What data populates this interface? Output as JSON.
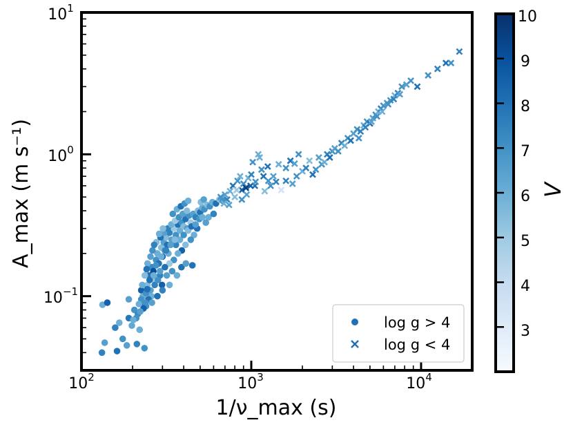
{
  "chart_data": {
    "type": "scatter",
    "title": "",
    "xscale": "log",
    "yscale": "log",
    "xlabel": "1/ν_max (s)",
    "ylabel": "A_max (m s⁻¹)",
    "xlim": [
      100,
      20000
    ],
    "ylim": [
      0.03,
      10
    ],
    "x_ticks": [
      {
        "base": "10",
        "exp": "2",
        "value": 100
      },
      {
        "base": "10",
        "exp": "3",
        "value": 1000
      },
      {
        "base": "10",
        "exp": "4",
        "value": 10000
      }
    ],
    "y_ticks": [
      {
        "base": "10",
        "exp": "−1",
        "value": 0.1
      },
      {
        "base": "10",
        "exp": "0",
        "value": 1
      },
      {
        "base": "10",
        "exp": "1",
        "value": 10
      }
    ],
    "colorbar": {
      "label": "V",
      "range": [
        2,
        10
      ],
      "ticks": [
        "3",
        "4",
        "5",
        "6",
        "7",
        "8",
        "9",
        "10"
      ],
      "colormap": [
        "#f7fbff",
        "#deebf7",
        "#c6dbef",
        "#9ecae1",
        "#6baed6",
        "#4292c6",
        "#2171b5",
        "#08519c",
        "#08306b"
      ]
    },
    "legend": {
      "position": "lower-right",
      "entries": [
        {
          "marker": "circle",
          "label": "log g > 4",
          "color": "#2171b5"
        },
        {
          "marker": "x",
          "label": "log g < 4",
          "color": "#2171b5"
        }
      ]
    },
    "series": [
      {
        "name": "log g > 4",
        "marker": "circle",
        "points": [
          [
            132,
            0.04,
            7.5
          ],
          [
            137,
            0.047,
            6.5
          ],
          [
            133,
            0.087,
            6.0
          ],
          [
            142,
            0.09,
            8.5
          ],
          [
            162,
            0.041,
            8.0
          ],
          [
            158,
            0.06,
            7.5
          ],
          [
            167,
            0.065,
            6.0
          ],
          [
            175,
            0.05,
            7.0
          ],
          [
            185,
            0.045,
            6.5
          ],
          [
            190,
            0.07,
            7.8
          ],
          [
            198,
            0.062,
            6.2
          ],
          [
            205,
            0.08,
            7.0
          ],
          [
            212,
            0.046,
            7.5
          ],
          [
            220,
            0.058,
            6.0
          ],
          [
            228,
            0.09,
            8.0
          ],
          [
            235,
            0.043,
            7.0
          ],
          [
            190,
            0.095,
            6.5
          ],
          [
            215,
            0.075,
            7.2
          ],
          [
            225,
            0.11,
            8.5
          ],
          [
            230,
            0.1,
            6.0
          ],
          [
            240,
            0.085,
            7.0
          ],
          [
            245,
            0.12,
            5.5
          ],
          [
            250,
            0.14,
            8.0
          ],
          [
            255,
            0.11,
            6.5
          ],
          [
            260,
            0.16,
            7.2
          ],
          [
            265,
            0.15,
            9.0
          ],
          [
            270,
            0.13,
            5.0
          ],
          [
            275,
            0.18,
            7.0
          ],
          [
            280,
            0.2,
            6.0
          ],
          [
            285,
            0.17,
            8.0
          ],
          [
            290,
            0.14,
            7.5
          ],
          [
            295,
            0.22,
            5.5
          ],
          [
            300,
            0.19,
            8.5
          ],
          [
            305,
            0.24,
            6.5
          ],
          [
            310,
            0.21,
            7.0
          ],
          [
            315,
            0.26,
            5.5
          ],
          [
            320,
            0.23,
            8.0
          ],
          [
            325,
            0.2,
            6.0
          ],
          [
            330,
            0.28,
            7.5
          ],
          [
            340,
            0.25,
            6.5
          ],
          [
            350,
            0.3,
            5.0
          ],
          [
            360,
            0.27,
            7.0
          ],
          [
            370,
            0.32,
            8.0
          ],
          [
            380,
            0.29,
            6.0
          ],
          [
            390,
            0.33,
            7.0
          ],
          [
            400,
            0.31,
            5.5
          ],
          [
            410,
            0.35,
            8.0
          ],
          [
            420,
            0.3,
            6.5
          ],
          [
            430,
            0.37,
            7.0
          ],
          [
            440,
            0.33,
            5.0
          ],
          [
            455,
            0.38,
            6.5
          ],
          [
            470,
            0.36,
            7.5
          ],
          [
            485,
            0.4,
            5.5
          ],
          [
            500,
            0.39,
            8.0
          ],
          [
            515,
            0.42,
            6.0
          ],
          [
            530,
            0.41,
            7.0
          ],
          [
            550,
            0.44,
            5.5
          ],
          [
            570,
            0.43,
            7.0
          ],
          [
            590,
            0.46,
            6.0
          ],
          [
            620,
            0.45,
            8.0
          ],
          [
            650,
            0.48,
            5.5
          ],
          [
            680,
            0.47,
            7.0
          ],
          [
            560,
            0.36,
            6.0
          ],
          [
            600,
            0.38,
            7.5
          ],
          [
            540,
            0.33,
            6.5
          ],
          [
            480,
            0.3,
            8.0
          ],
          [
            460,
            0.27,
            6.0
          ],
          [
            440,
            0.25,
            7.0
          ],
          [
            410,
            0.23,
            5.5
          ],
          [
            390,
            0.21,
            8.5
          ],
          [
            370,
            0.2,
            6.0
          ],
          [
            350,
            0.18,
            7.0
          ],
          [
            330,
            0.17,
            5.0
          ],
          [
            310,
            0.16,
            8.0
          ],
          [
            290,
            0.15,
            6.5
          ],
          [
            270,
            0.12,
            7.5
          ],
          [
            258,
            0.1,
            6.0
          ],
          [
            248,
            0.095,
            8.0
          ],
          [
            238,
            0.09,
            7.0
          ],
          [
            232,
            0.082,
            8.5
          ],
          [
            222,
            0.078,
            6.5
          ],
          [
            210,
            0.07,
            7.0
          ],
          [
            202,
            0.068,
            6.0
          ],
          [
            245,
            0.17,
            6.0
          ],
          [
            262,
            0.21,
            7.0
          ],
          [
            276,
            0.24,
            5.5
          ],
          [
            292,
            0.26,
            8.0
          ],
          [
            306,
            0.28,
            6.5
          ],
          [
            322,
            0.3,
            7.5
          ],
          [
            338,
            0.32,
            6.0
          ],
          [
            356,
            0.34,
            5.0
          ],
          [
            375,
            0.36,
            7.0
          ],
          [
            395,
            0.38,
            6.5
          ],
          [
            418,
            0.4,
            5.5
          ],
          [
            252,
            0.13,
            8.0
          ],
          [
            266,
            0.14,
            6.0
          ],
          [
            282,
            0.13,
            7.0
          ],
          [
            298,
            0.12,
            8.5
          ],
          [
            318,
            0.14,
            6.5
          ],
          [
            342,
            0.15,
            7.0
          ],
          [
            365,
            0.14,
            6.0
          ],
          [
            388,
            0.16,
            8.0
          ],
          [
            412,
            0.17,
            6.5
          ],
          [
            450,
            0.165,
            8.0
          ],
          [
            300,
            0.11,
            7.5
          ],
          [
            330,
            0.12,
            6.0
          ],
          [
            280,
            0.1,
            8.0
          ],
          [
            260,
            0.09,
            6.5
          ],
          [
            240,
            0.105,
            7.0
          ],
          [
            228,
            0.12,
            6.0
          ],
          [
            236,
            0.14,
            5.5
          ],
          [
            242,
            0.155,
            8.0
          ],
          [
            255,
            0.19,
            6.5
          ],
          [
            268,
            0.23,
            7.5
          ],
          [
            287,
            0.275,
            6.0
          ],
          [
            302,
            0.3,
            5.5
          ],
          [
            345,
            0.38,
            7.0
          ],
          [
            365,
            0.41,
            6.0
          ],
          [
            385,
            0.43,
            8.0
          ],
          [
            405,
            0.45,
            7.0
          ],
          [
            425,
            0.47,
            6.0
          ],
          [
            505,
            0.46,
            5.5
          ],
          [
            525,
            0.48,
            6.5
          ],
          [
            360,
            0.23,
            7.5
          ],
          [
            380,
            0.25,
            6.0
          ],
          [
            400,
            0.27,
            7.0
          ],
          [
            425,
            0.29,
            5.5
          ],
          [
            445,
            0.31,
            8.0
          ],
          [
            470,
            0.32,
            6.5
          ],
          [
            495,
            0.35,
            7.0
          ],
          [
            515,
            0.36,
            6.0
          ],
          [
            275,
            0.165,
            7.0
          ],
          [
            295,
            0.19,
            6.0
          ],
          [
            315,
            0.21,
            7.5
          ],
          [
            335,
            0.23,
            6.5
          ],
          [
            355,
            0.25,
            5.5
          ],
          [
            225,
            0.095,
            7.0
          ],
          [
            218,
            0.088,
            6.0
          ],
          [
            244,
            0.112,
            8.0
          ]
        ]
      },
      {
        "name": "log g < 4",
        "marker": "x",
        "points": [
          [
            700,
            0.52,
            6.5
          ],
          [
            720,
            0.48,
            7.5
          ],
          [
            750,
            0.55,
            6.0
          ],
          [
            780,
            0.6,
            8.0
          ],
          [
            800,
            0.5,
            5.5
          ],
          [
            830,
            0.65,
            7.0
          ],
          [
            860,
            0.7,
            6.0
          ],
          [
            880,
            0.56,
            8.5
          ],
          [
            900,
            0.62,
            7.0
          ],
          [
            930,
            0.58,
            9.5
          ],
          [
            960,
            0.68,
            6.0
          ],
          [
            1000,
            0.72,
            7.5
          ],
          [
            1050,
            0.6,
            8.0
          ],
          [
            1100,
            1.0,
            6.0
          ],
          [
            1150,
            0.78,
            7.0
          ],
          [
            1200,
            0.55,
            5.5
          ],
          [
            1250,
            0.82,
            8.0
          ],
          [
            1300,
            0.6,
            7.0
          ],
          [
            1350,
            0.7,
            6.5
          ],
          [
            1400,
            0.64,
            7.5
          ],
          [
            1450,
            0.85,
            6.0
          ],
          [
            1500,
            0.56,
            3.5
          ],
          [
            1600,
            0.8,
            7.0
          ],
          [
            1700,
            0.9,
            8.0
          ],
          [
            1800,
            0.86,
            6.5
          ],
          [
            1900,
            1.0,
            7.0
          ],
          [
            2000,
            0.76,
            6.0
          ],
          [
            2100,
            0.8,
            7.5
          ],
          [
            2200,
            0.9,
            5.5
          ],
          [
            2300,
            0.72,
            8.0
          ],
          [
            2400,
            0.78,
            7.0
          ],
          [
            2500,
            0.95,
            6.5
          ],
          [
            2600,
            0.85,
            7.0
          ],
          [
            2700,
            0.88,
            6.0
          ],
          [
            2800,
            1.0,
            7.5
          ],
          [
            2900,
            0.95,
            8.0
          ],
          [
            3000,
            1.05,
            7.0
          ],
          [
            3100,
            1.1,
            6.5
          ],
          [
            3250,
            1.05,
            7.0
          ],
          [
            3400,
            1.2,
            7.5
          ],
          [
            3550,
            1.15,
            6.0
          ],
          [
            3700,
            1.3,
            7.0
          ],
          [
            3850,
            1.25,
            8.0
          ],
          [
            4000,
            1.4,
            6.5
          ],
          [
            4200,
            1.5,
            7.0
          ],
          [
            4400,
            1.45,
            7.5
          ],
          [
            4600,
            1.6,
            6.0
          ],
          [
            4800,
            1.7,
            7.0
          ],
          [
            5000,
            1.65,
            8.0
          ],
          [
            5200,
            1.8,
            6.5
          ],
          [
            5400,
            1.9,
            7.0
          ],
          [
            5600,
            2.0,
            6.0
          ],
          [
            5800,
            2.1,
            7.5
          ],
          [
            6000,
            2.2,
            7.0
          ],
          [
            6300,
            2.3,
            6.5
          ],
          [
            6600,
            2.4,
            7.0
          ],
          [
            7000,
            2.6,
            6.0
          ],
          [
            7300,
            2.7,
            7.5
          ],
          [
            7700,
            3.0,
            7.0
          ],
          [
            8200,
            3.1,
            6.5
          ],
          [
            8700,
            3.3,
            7.0
          ],
          [
            9500,
            3.0,
            8.0
          ],
          [
            11000,
            3.6,
            7.0
          ],
          [
            12500,
            4.0,
            7.5
          ],
          [
            14000,
            4.4,
            8.0
          ],
          [
            15000,
            4.4,
            7.0
          ],
          [
            16800,
            5.3,
            7.5
          ],
          [
            4300,
            1.3,
            7.0
          ],
          [
            4700,
            1.55,
            7.5
          ],
          [
            5100,
            1.7,
            6.5
          ],
          [
            5500,
            1.85,
            7.0
          ],
          [
            5900,
            2.0,
            6.0
          ],
          [
            6400,
            2.25,
            7.0
          ],
          [
            6900,
            2.45,
            7.5
          ],
          [
            7500,
            2.65,
            6.5
          ],
          [
            1020,
            0.88,
            7.0
          ],
          [
            1120,
            0.95,
            6.0
          ],
          [
            1180,
            0.7,
            8.0
          ],
          [
            1260,
            0.65,
            7.0
          ],
          [
            1600,
            0.65,
            7.5
          ],
          [
            1750,
            0.62,
            6.5
          ],
          [
            1850,
            0.7,
            7.0
          ],
          [
            820,
            0.56,
            5.0
          ],
          [
            880,
            0.48,
            7.0
          ],
          [
            940,
            0.52,
            6.5
          ],
          [
            990,
            0.6,
            8.5
          ],
          [
            1060,
            0.64,
            7.0
          ],
          [
            740,
            0.44,
            6.5
          ],
          [
            690,
            0.45,
            6.0
          ],
          [
            660,
            0.5,
            7.0
          ]
        ]
      }
    ]
  }
}
